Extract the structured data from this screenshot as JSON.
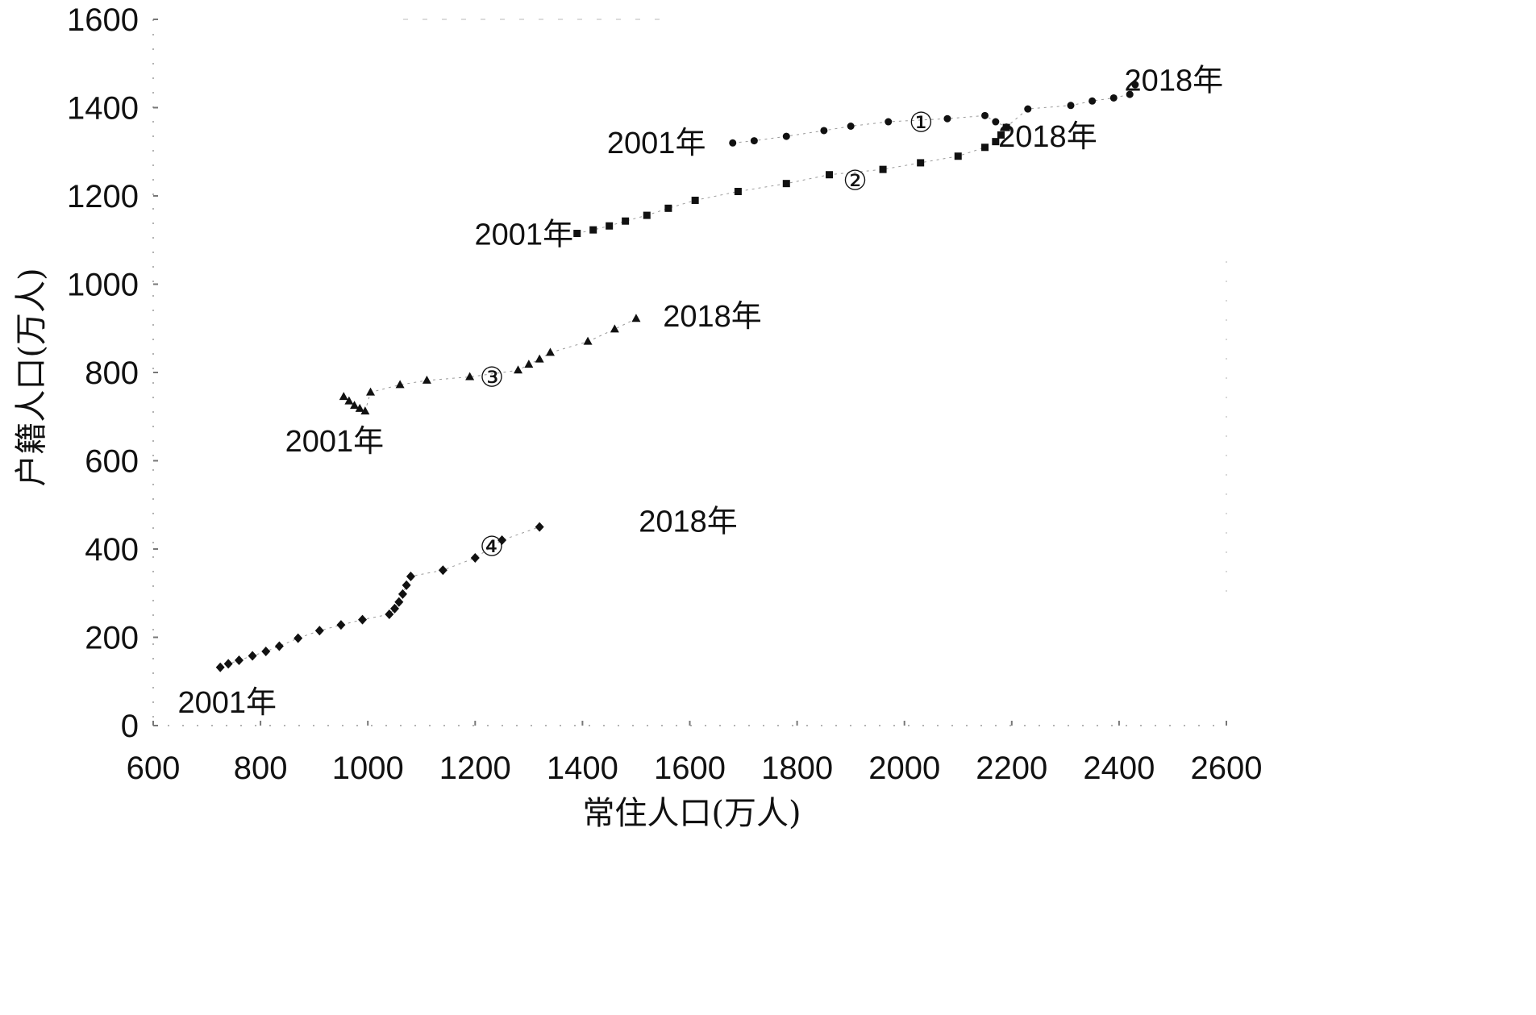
{
  "chart_data": {
    "type": "scatter",
    "title": "",
    "xlabel": "常住人口(万人)",
    "ylabel": "户籍人口(万人)",
    "xlim": [
      600,
      2600
    ],
    "ylim": [
      0,
      1600
    ],
    "xticks": [
      "600",
      "800",
      "1000",
      "1200",
      "1400",
      "1600",
      "1800",
      "2000",
      "2200",
      "2400",
      "2600"
    ],
    "yticks": [
      "0",
      "200",
      "400",
      "600",
      "800",
      "1000",
      "1200",
      "1400",
      "1600"
    ],
    "grid": false,
    "legend": false,
    "series": [
      {
        "marker": "circle",
        "label": "①",
        "label_anchor": [
          2031,
          1367
        ],
        "start_label": "2001年",
        "start_anchor": [
          1630,
          1321
        ],
        "end_label": "2018年",
        "end_anchor": [
          2410,
          1462
        ],
        "x": [
          1680,
          1720,
          1780,
          1850,
          1900,
          1970,
          2080,
          2150,
          2170,
          2190,
          2230,
          2310,
          2350,
          2390,
          2420,
          2430
        ],
        "y": [
          1320,
          1325,
          1335,
          1348,
          1358,
          1368,
          1375,
          1382,
          1368,
          1356,
          1397,
          1405,
          1415,
          1422,
          1430,
          1452
        ]
      },
      {
        "marker": "square",
        "label": "②",
        "label_anchor": [
          1908,
          1236
        ],
        "start_label": "2001年",
        "start_anchor": [
          1383,
          1113
        ],
        "end_label": "2018年",
        "end_anchor": [
          2175,
          1335
        ],
        "x": [
          1390,
          1420,
          1450,
          1480,
          1520,
          1560,
          1610,
          1690,
          1780,
          1860,
          1960,
          2030,
          2100,
          2150,
          2170,
          2180,
          2190
        ],
        "y": [
          1115,
          1123,
          1132,
          1143,
          1156,
          1172,
          1190,
          1210,
          1228,
          1248,
          1260,
          1275,
          1290,
          1310,
          1323,
          1338,
          1355
        ]
      },
      {
        "marker": "triangle",
        "label": "③",
        "label_anchor": [
          1231,
          790
        ],
        "start_label": "2001年",
        "start_anchor": [
          1030,
          645
        ],
        "end_label": "2018年",
        "end_anchor": [
          1550,
          928
        ],
        "x": [
          955,
          965,
          975,
          985,
          995,
          1005,
          1060,
          1110,
          1190,
          1280,
          1300,
          1320,
          1340,
          1410,
          1460,
          1500
        ],
        "y": [
          745,
          735,
          725,
          718,
          712,
          755,
          772,
          782,
          790,
          805,
          818,
          830,
          845,
          870,
          898,
          922
        ]
      },
      {
        "marker": "diamond",
        "label": "④",
        "label_anchor": [
          1231,
          406
        ],
        "start_label": "2001年",
        "start_anchor": [
          830,
          53
        ],
        "end_label": "2018年",
        "end_anchor": [
          1505,
          463
        ],
        "x": [
          725,
          740,
          760,
          785,
          810,
          835,
          870,
          910,
          950,
          990,
          1040,
          1050,
          1058,
          1065,
          1072,
          1080,
          1140,
          1200,
          1250,
          1320
        ],
        "y": [
          132,
          140,
          148,
          158,
          168,
          180,
          198,
          215,
          228,
          240,
          252,
          265,
          280,
          298,
          318,
          338,
          352,
          380,
          420,
          450
        ]
      }
    ]
  }
}
